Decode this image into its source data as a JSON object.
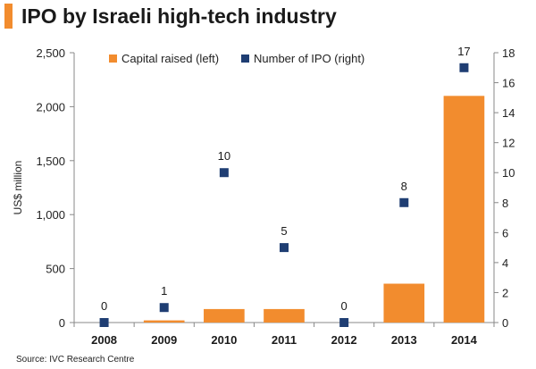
{
  "header": {
    "title": "IPO by Israeli high-tech industry"
  },
  "footer": {
    "source": "Source: IVC Research Centre"
  },
  "colors": {
    "accent": "#f28c2e",
    "bar": "#f28c2e",
    "marker": "#1f3e73"
  },
  "chart_data": {
    "type": "bar",
    "title": "IPO by Israeli high-tech industry",
    "xlabel": "",
    "ylabel": "US$ million",
    "y2label": "",
    "ylim": [
      0,
      2500
    ],
    "y2lim": [
      0,
      18
    ],
    "categories": [
      "2008",
      "2009",
      "2010",
      "2011",
      "2012",
      "2013",
      "2014"
    ],
    "yticks": [
      "0",
      "500",
      "1,000",
      "1,500",
      "2,000",
      "2,500"
    ],
    "ytick_values": [
      0,
      500,
      1000,
      1500,
      2000,
      2500
    ],
    "y2ticks": [
      "0",
      "2",
      "4",
      "6",
      "8",
      "10",
      "12",
      "14",
      "16",
      "18"
    ],
    "y2tick_values": [
      0,
      2,
      4,
      6,
      8,
      10,
      12,
      14,
      16,
      18
    ],
    "legend_position": "top",
    "series": [
      {
        "name": "Capital raised (left)",
        "type": "bar",
        "axis": "left",
        "values": [
          0,
          20,
          125,
          125,
          0,
          360,
          2100
        ]
      },
      {
        "name": "Number of IPO (right)",
        "type": "scatter",
        "axis": "right",
        "values": [
          0,
          1,
          10,
          5,
          0,
          8,
          17
        ],
        "labels": [
          "0",
          "1",
          "10",
          "5",
          "0",
          "8",
          "17"
        ]
      }
    ]
  }
}
